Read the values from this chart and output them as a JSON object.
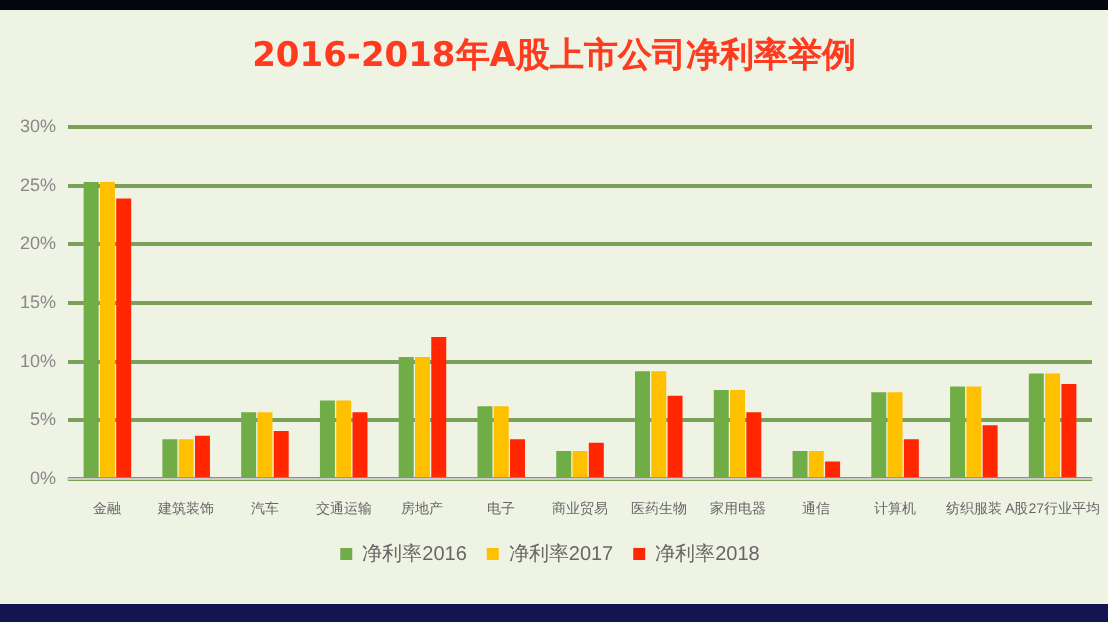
{
  "chart_data": {
    "type": "bar",
    "title": "2016-2018年A股上市公司净利率举例",
    "categories": [
      "金融",
      "建筑装饰",
      "汽车",
      "交通运输",
      "房地产",
      "电子",
      "商业贸易",
      "医药生物",
      "家用电器",
      "通信",
      "计算机",
      "纺织服装",
      "A股27行业平均"
    ],
    "series": [
      {
        "name": "净利率2016",
        "color": "#70ad47",
        "values": [
          25.3,
          3.4,
          5.7,
          6.7,
          10.4,
          6.2,
          2.4,
          9.2,
          7.6,
          2.4,
          7.4,
          7.9,
          9.0
        ]
      },
      {
        "name": "净利率2017",
        "color": "#ffc000",
        "values": [
          25.3,
          3.4,
          5.7,
          6.7,
          10.4,
          6.2,
          2.4,
          9.2,
          7.6,
          2.4,
          7.4,
          7.9,
          9.0
        ]
      },
      {
        "name": "净利率2018",
        "color": "#ff2600",
        "values": [
          23.9,
          3.7,
          4.1,
          5.7,
          12.1,
          3.4,
          3.1,
          7.1,
          5.7,
          1.5,
          3.4,
          4.6,
          8.1
        ]
      }
    ],
    "ylim": [
      0,
      30
    ],
    "yticks": [
      {
        "value": 0,
        "label": "0%"
      },
      {
        "value": 5,
        "label": "5%"
      },
      {
        "value": 10,
        "label": "10%"
      },
      {
        "value": 15,
        "label": "15%"
      },
      {
        "value": 20,
        "label": "20%"
      },
      {
        "value": 25,
        "label": "25%"
      },
      {
        "value": 30,
        "label": "30%"
      }
    ],
    "grid": "y",
    "legend": "bottom"
  }
}
